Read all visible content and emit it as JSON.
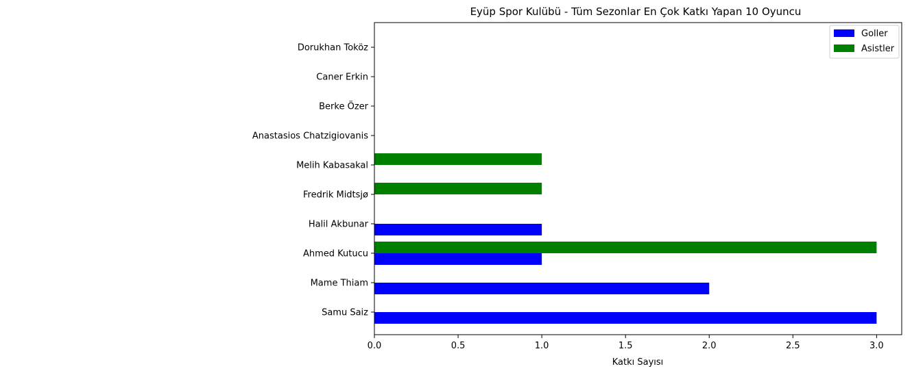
{
  "chart_data": {
    "type": "bar",
    "orientation": "horizontal",
    "title": "Eyüp Spor Kulübü - Tüm Sezonlar En Çok Katkı Yapan 10 Oyuncu",
    "xlabel": "Katkı Sayısı",
    "ylabel": "",
    "xlim": [
      0,
      3.15
    ],
    "x_ticks": [
      "0.0",
      "0.5",
      "1.0",
      "1.5",
      "2.0",
      "2.5",
      "3.0"
    ],
    "grid": false,
    "legend_position": "top-right",
    "categories": [
      "Samu Saiz",
      "Mame Thiam",
      "Ahmed Kutucu",
      "Halil Akbunar",
      "Fredrik Midtsjø",
      "Melih Kabasakal",
      "Anastasios Chatzigiovanis",
      "Berke Özer",
      "Caner Erkin",
      "Dorukhan Toköz"
    ],
    "series": [
      {
        "name": "Goller",
        "color": "#0000ff",
        "values": [
          3,
          2,
          1,
          1,
          0,
          0,
          0,
          0,
          0,
          0
        ]
      },
      {
        "name": "Asistler",
        "color": "#008000",
        "values": [
          0,
          0,
          3,
          0,
          1,
          1,
          0,
          0,
          0,
          0
        ]
      }
    ]
  }
}
